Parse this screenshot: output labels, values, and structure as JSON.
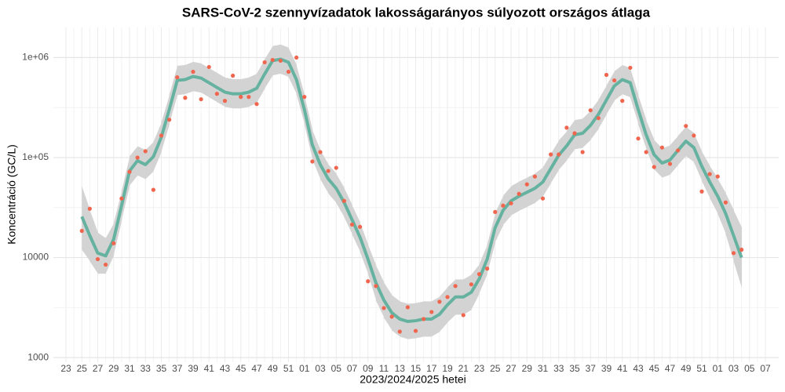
{
  "chart_data": {
    "type": "line",
    "title": "SARS-CoV-2 szennyvízadatok lakosságarányos súlyozott országos átlaga",
    "x_label": "2023/2024/2025 hetei",
    "y_label": "Koncentráció (GC/L)",
    "log_y": true,
    "grid": true,
    "ylim": [
      900,
      2000000
    ],
    "yticks": [
      1000,
      10000,
      {
        "value": 100000,
        "label": "1e+05"
      },
      {
        "value": 1000000,
        "label": "1e+06"
      }
    ],
    "categories": [
      "23",
      null,
      "25",
      null,
      "27",
      null,
      "29",
      null,
      "31",
      null,
      "33",
      null,
      "35",
      null,
      "37",
      null,
      "39",
      null,
      "41",
      null,
      "43",
      null,
      "45",
      null,
      "47",
      null,
      "49",
      null,
      "51",
      null,
      "01",
      null,
      "03",
      null,
      "05",
      null,
      "07",
      null,
      "09",
      null,
      "11",
      null,
      "13",
      null,
      "15",
      null,
      "17",
      null,
      "19",
      null,
      "21",
      null,
      "23",
      null,
      "25",
      null,
      "27",
      null,
      "29",
      null,
      "31",
      null,
      "33",
      null,
      "35",
      null,
      "37",
      null,
      "39",
      null,
      "41",
      null,
      "43",
      null,
      "45",
      null,
      "47",
      null,
      "49",
      null,
      "51",
      null,
      "01",
      null,
      "03",
      null,
      "05",
      null,
      "07"
    ],
    "points": {
      "color": "#f0654d",
      "values": [
        null,
        null,
        18500,
        30800,
        9650,
        8500,
        13900,
        39000,
        72100,
        100000,
        115700,
        47600,
        166000,
        239000,
        635000,
        396000,
        721000,
        383000,
        805000,
        434000,
        369000,
        659000,
        404000,
        404000,
        343000,
        897000,
        947000,
        930000,
        721000,
        1000000,
        404000,
        91400,
        113500,
        73500,
        79000,
        36900,
        21400,
        20300,
        5800,
        5200,
        3130,
        2570,
        1820,
        3190,
        1850,
        2430,
        2860,
        3620,
        4040,
        5200,
        2660,
        5400,
        6840,
        7760,
        28600,
        33100,
        34900,
        43400,
        54000,
        64700,
        39000,
        107500,
        107500,
        199000,
        175000,
        113500,
        297000,
        248000,
        671000,
        591000,
        369000,
        790000,
        155000,
        113500,
        80500,
        126000,
        86500,
        118000,
        207000,
        166000,
        45800,
        68400,
        64700,
        35600,
        11100,
        12000,
        null,
        null,
        null
      ]
    },
    "smooth": {
      "color": "#66b2a0",
      "band_color": "#d3d3d3",
      "values": [
        null,
        null,
        25700,
        16600,
        11100,
        10400,
        15200,
        33100,
        73500,
        93000,
        85000,
        102000,
        160000,
        302000,
        591000,
        602000,
        647000,
        624000,
        560000,
        502000,
        451000,
        434000,
        434000,
        451000,
        493000,
        684000,
        930000,
        964000,
        897000,
        602000,
        302000,
        134000,
        85000,
        61300,
        49300,
        35600,
        23900,
        16000,
        9650,
        5600,
        3760,
        2810,
        2430,
        2300,
        2340,
        2430,
        2430,
        2710,
        3370,
        4040,
        4040,
        4500,
        6130,
        9650,
        19900,
        29700,
        36900,
        41100,
        45000,
        49300,
        57000,
        77600,
        105700,
        131000,
        169000,
        175000,
        210000,
        271000,
        376000,
        521000,
        602000,
        560000,
        302000,
        169000,
        107000,
        88100,
        94700,
        118000,
        146000,
        126000,
        81900,
        57000,
        41100,
        27600,
        16600,
        10000,
        null,
        null,
        null
      ],
      "lower": [
        null,
        null,
        12000,
        9200,
        6900,
        6900,
        10500,
        23600,
        52500,
        66400,
        60700,
        72900,
        114000,
        216000,
        422000,
        430000,
        462000,
        446000,
        400000,
        359000,
        322000,
        310000,
        310000,
        322000,
        352000,
        489000,
        664000,
        689000,
        641000,
        430000,
        216000,
        95700,
        60700,
        43800,
        35200,
        25400,
        17100,
        11400,
        6890,
        3730,
        2510,
        1870,
        1620,
        1530,
        1560,
        1620,
        1620,
        1810,
        2250,
        2690,
        2690,
        3000,
        4380,
        6890,
        14200,
        21200,
        26400,
        29400,
        32100,
        35200,
        40700,
        55400,
        75500,
        93600,
        121000,
        125000,
        150000,
        194000,
        269000,
        372000,
        430000,
        400000,
        216000,
        121000,
        76400,
        62900,
        67600,
        84300,
        104000,
        90000,
        58500,
        39300,
        27400,
        17300,
        9200,
        5000,
        null,
        null,
        null
      ],
      "upper": [
        null,
        null,
        52000,
        30000,
        17800,
        15600,
        22000,
        46300,
        103000,
        130000,
        119000,
        143000,
        224000,
        423000,
        827000,
        843000,
        906000,
        874000,
        784000,
        703000,
        631000,
        608000,
        608000,
        631000,
        690000,
        958000,
        1302000,
        1350000,
        1256000,
        843000,
        423000,
        188000,
        119000,
        85800,
        69000,
        49800,
        33500,
        22400,
        13500,
        8400,
        5640,
        4220,
        3650,
        3450,
        3510,
        3650,
        3650,
        4070,
        5060,
        6060,
        6060,
        6750,
        8580,
        13500,
        27900,
        41600,
        51700,
        57500,
        63000,
        69000,
        79800,
        109000,
        148000,
        183000,
        237000,
        245000,
        294000,
        379000,
        526000,
        729000,
        843000,
        784000,
        423000,
        237000,
        150000,
        123000,
        133000,
        165000,
        204000,
        176000,
        115000,
        82700,
        61700,
        44200,
        29900,
        20000,
        null,
        null,
        null
      ]
    }
  }
}
